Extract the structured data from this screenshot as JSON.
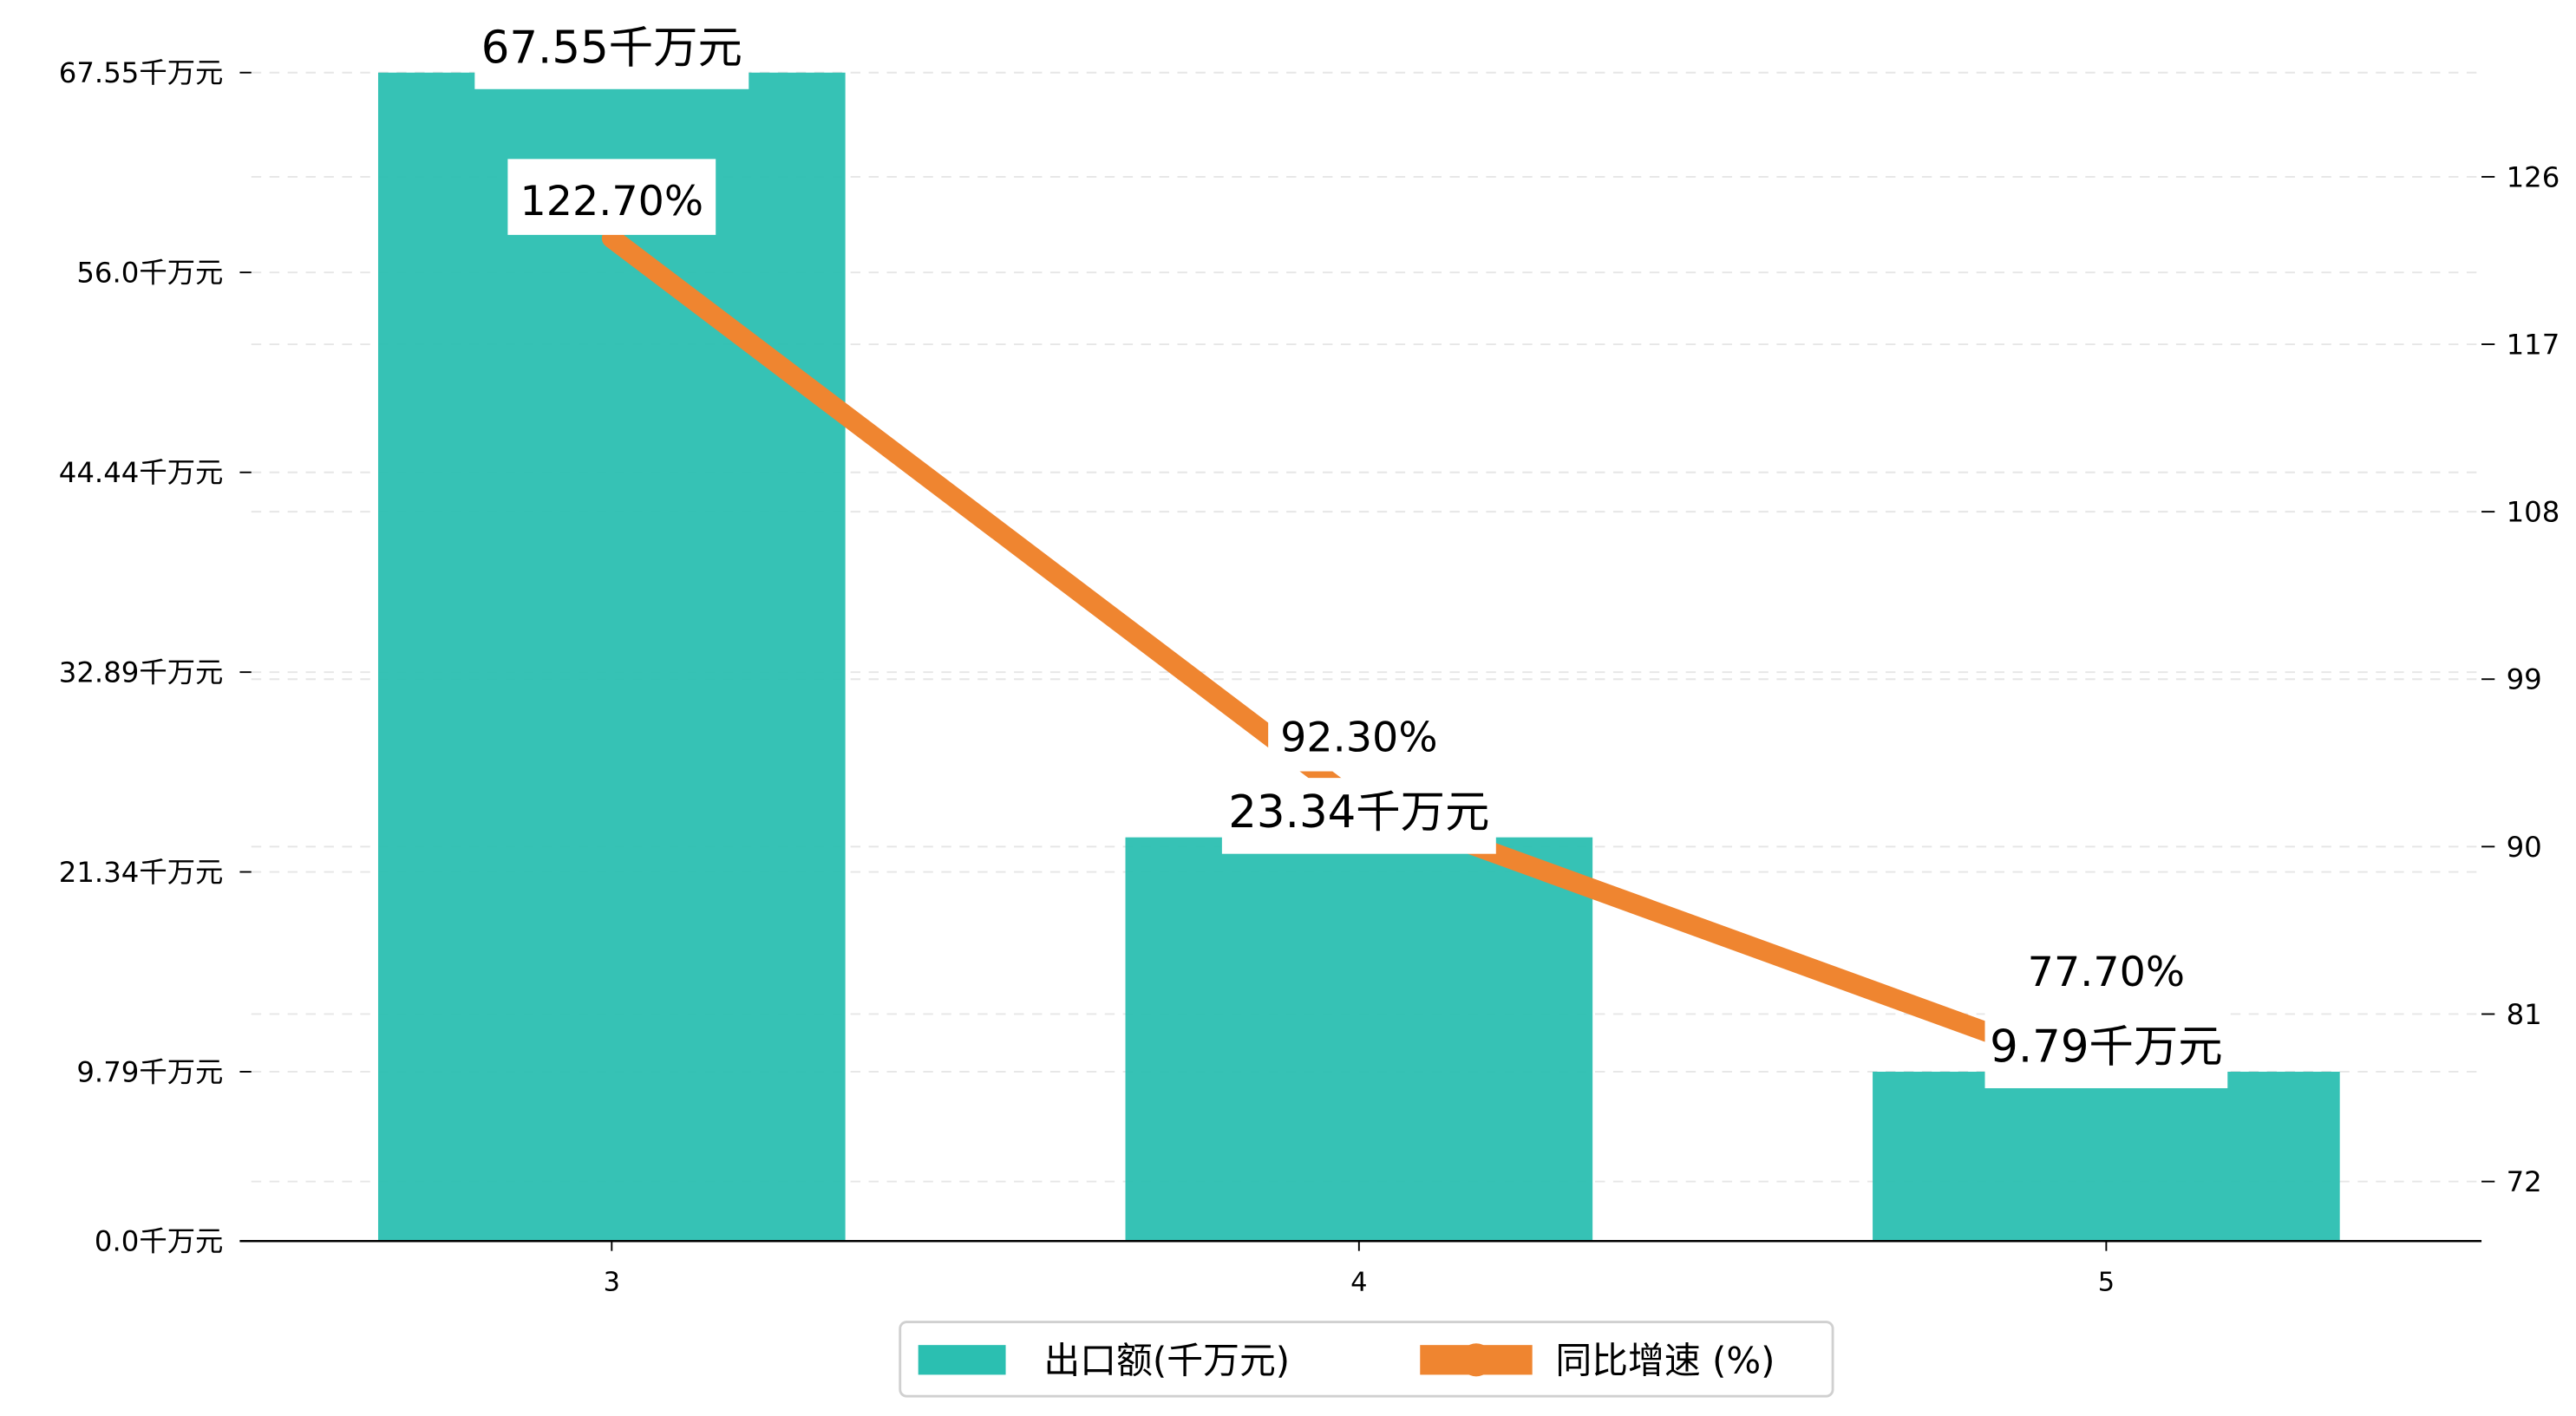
{
  "chart_data": {
    "type": "bar",
    "title": "",
    "xlabel": "",
    "ylabel": "",
    "categories": [
      "3",
      "4",
      "5"
    ],
    "series": [
      {
        "name": "出口额(千万元)",
        "type": "bar",
        "axis": "left",
        "values": [
          67.55,
          23.34,
          9.79
        ],
        "labels": [
          "67.55千万元",
          "23.34千万元",
          "9.79千万元"
        ]
      },
      {
        "name": "同比增速 (%)",
        "type": "line",
        "axis": "right",
        "values": [
          122.7,
          92.3,
          77.7
        ],
        "labels": [
          "122.70%",
          "92.30%",
          "77.70%"
        ]
      }
    ],
    "left_axis": {
      "ylim": [
        0,
        67.55
      ],
      "ticks": [
        0.0,
        9.79,
        21.34,
        32.89,
        44.44,
        56.0,
        67.55
      ],
      "tick_labels": [
        "0.0千万元",
        "9.79千万元",
        "21.34千万元",
        "32.89千万元",
        "44.44千万元",
        "56.0千万元",
        "67.55千万元"
      ]
    },
    "right_axis": {
      "ylim": [
        68.8,
        131.6
      ],
      "ticks": [
        72,
        81,
        90,
        99,
        108,
        117,
        126
      ],
      "tick_labels": [
        "72",
        "81",
        "90",
        "99",
        "108",
        "117",
        "126"
      ]
    },
    "grid": true,
    "legend": {
      "placement": "bottom-center",
      "entries": [
        "出口额(千万元)",
        "同比增速 (%)"
      ]
    },
    "colors": {
      "bar": "#2bbfb1",
      "line": "#ef8530",
      "grid": "#e6e6e6"
    }
  }
}
